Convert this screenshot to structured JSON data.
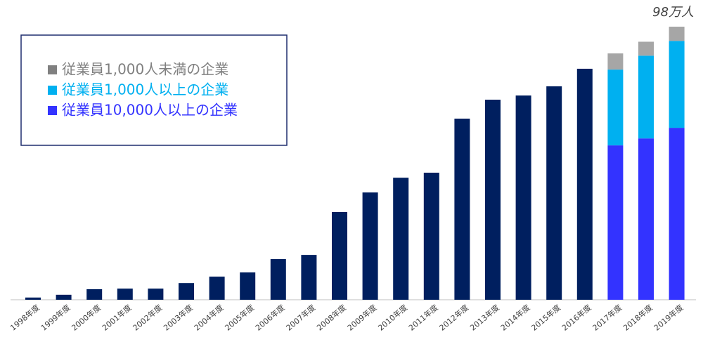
{
  "chart_data": {
    "type": "stacked-bar",
    "categories": [
      "1998年度",
      "1999年度",
      "2000年度",
      "2001年度",
      "2002年度",
      "2003年度",
      "2004年度",
      "2005年度",
      "2006年度",
      "2007年度",
      "2008年度",
      "2009年度",
      "2010年度",
      "2011年度",
      "2012年度",
      "2013年度",
      "2014年度",
      "2015年度",
      "2016年度",
      "2017年度",
      "2018年度",
      "2019年度"
    ],
    "series": [
      {
        "color": "#001f5f",
        "values": [
          0.8,
          1.8,
          3.8,
          4.0,
          4.0,
          6.0,
          8.3,
          9.8,
          14.6,
          16.1,
          31.5,
          38.5,
          43.8,
          45.6,
          65.0,
          71.8,
          73.3,
          76.6,
          82.9,
          null,
          null,
          null
        ]
      },
      {
        "name": "従業員10,000人以上の企業",
        "color": "#3333ff",
        "values": [
          null,
          null,
          null,
          null,
          null,
          null,
          null,
          null,
          null,
          null,
          null,
          null,
          null,
          null,
          null,
          null,
          null,
          null,
          null,
          55.4,
          57.9,
          61.7
        ]
      },
      {
        "name": "従業員1,000人以上の企業",
        "color": "#00b0f0",
        "values": [
          null,
          null,
          null,
          null,
          null,
          null,
          null,
          null,
          null,
          null,
          null,
          null,
          null,
          null,
          null,
          null,
          null,
          null,
          null,
          27.2,
          29.7,
          31.2
        ]
      },
      {
        "name": "従業員1,000人未満の企業",
        "color": "#a6a6a6",
        "values": [
          null,
          null,
          null,
          null,
          null,
          null,
          null,
          null,
          null,
          null,
          null,
          null,
          null,
          null,
          null,
          null,
          null,
          null,
          null,
          5.8,
          5.0,
          5.1
        ]
      }
    ],
    "annotation": "98万人",
    "ylim": [
      0,
      98
    ]
  }
}
